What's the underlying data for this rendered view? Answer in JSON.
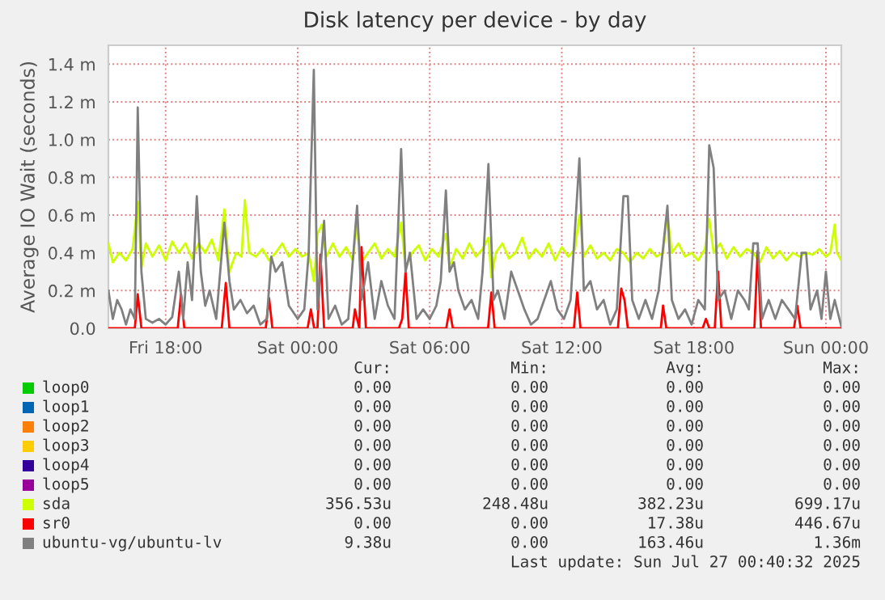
{
  "chart_data": {
    "type": "line",
    "title": "Disk latency per device - by day",
    "ylabel": "Average IO Wait (seconds)",
    "xlim": [
      "2025-07-25T15:24",
      "2025-07-27T00:42"
    ],
    "xticks": [
      {
        "value": "2025-07-25T18:00",
        "label": "Fri 18:00"
      },
      {
        "value": "2025-07-26T00:00",
        "label": "Sat 00:00"
      },
      {
        "value": "2025-07-26T06:00",
        "label": "Sat 06:00"
      },
      {
        "value": "2025-07-26T12:00",
        "label": "Sat 12:00"
      },
      {
        "value": "2025-07-26T18:00",
        "label": "Sat 18:00"
      },
      {
        "value": "2025-07-27T00:00",
        "label": "Sun 00:00"
      }
    ],
    "ylim": [
      0,
      1.5
    ],
    "yticks": [
      {
        "value": 0,
        "label": "0.0"
      },
      {
        "value": 0.2,
        "label": "0.2 m"
      },
      {
        "value": 0.4,
        "label": "0.4 m"
      },
      {
        "value": 0.6,
        "label": "0.6 m"
      },
      {
        "value": 0.8,
        "label": "0.8 m"
      },
      {
        "value": 1.0,
        "label": "1.0 m"
      },
      {
        "value": 1.2,
        "label": "1.2 m"
      },
      {
        "value": 1.4,
        "label": "1.4 m"
      }
    ],
    "grid": true,
    "legend": "bottom",
    "series": [
      {
        "name": "loop0",
        "color": "#00cc00"
      },
      {
        "name": "loop1",
        "color": "#0066b3"
      },
      {
        "name": "loop2",
        "color": "#ff8000"
      },
      {
        "name": "loop3",
        "color": "#ffcc00"
      },
      {
        "name": "loop4",
        "color": "#330099"
      },
      {
        "name": "loop5",
        "color": "#990099"
      },
      {
        "name": "sda",
        "color": "#ccff00",
        "x": [
          "2025-07-25T15:24",
          "2025-07-25T15:36",
          "2025-07-25T15:54",
          "2025-07-25T16:12",
          "2025-07-25T16:30",
          "2025-07-25T16:44",
          "2025-07-25T16:54",
          "2025-07-25T17:06",
          "2025-07-25T17:24",
          "2025-07-25T17:42",
          "2025-07-25T18:00",
          "2025-07-25T18:18",
          "2025-07-25T18:36",
          "2025-07-25T18:54",
          "2025-07-25T19:12",
          "2025-07-25T19:30",
          "2025-07-25T19:48",
          "2025-07-25T20:06",
          "2025-07-25T20:24",
          "2025-07-25T20:40",
          "2025-07-25T20:54",
          "2025-07-25T21:12",
          "2025-07-25T21:27",
          "2025-07-25T21:36",
          "2025-07-25T21:48",
          "2025-07-25T22:06",
          "2025-07-25T22:24",
          "2025-07-25T22:42",
          "2025-07-25T23:00",
          "2025-07-25T23:18",
          "2025-07-25T23:36",
          "2025-07-25T23:54",
          "2025-07-26T00:12",
          "2025-07-26T00:30",
          "2025-07-26T00:44",
          "2025-07-26T00:54",
          "2025-07-26T01:06",
          "2025-07-26T01:18",
          "2025-07-26T01:36",
          "2025-07-26T01:54",
          "2025-07-26T02:12",
          "2025-07-26T02:30",
          "2025-07-26T02:42",
          "2025-07-26T02:54",
          "2025-07-26T03:12",
          "2025-07-26T03:30",
          "2025-07-26T03:48",
          "2025-07-26T04:06",
          "2025-07-26T04:24",
          "2025-07-26T04:42",
          "2025-07-26T04:54",
          "2025-07-26T05:12",
          "2025-07-26T05:30",
          "2025-07-26T05:48",
          "2025-07-26T06:06",
          "2025-07-26T06:24",
          "2025-07-26T06:44",
          "2025-07-26T06:54",
          "2025-07-26T07:12",
          "2025-07-26T07:30",
          "2025-07-26T07:48",
          "2025-07-26T08:06",
          "2025-07-26T08:24",
          "2025-07-26T08:40",
          "2025-07-26T08:48",
          "2025-07-26T09:00",
          "2025-07-26T09:18",
          "2025-07-26T09:36",
          "2025-07-26T09:54",
          "2025-07-26T10:12",
          "2025-07-26T10:30",
          "2025-07-26T10:48",
          "2025-07-26T11:06",
          "2025-07-26T11:24",
          "2025-07-26T11:42",
          "2025-07-26T12:00",
          "2025-07-26T12:18",
          "2025-07-26T12:36",
          "2025-07-26T12:48",
          "2025-07-26T13:00",
          "2025-07-26T13:18",
          "2025-07-26T13:36",
          "2025-07-26T13:54",
          "2025-07-26T14:12",
          "2025-07-26T14:30",
          "2025-07-26T14:48",
          "2025-07-26T15:06",
          "2025-07-26T15:24",
          "2025-07-26T15:42",
          "2025-07-26T16:00",
          "2025-07-26T16:18",
          "2025-07-26T16:36",
          "2025-07-26T16:48",
          "2025-07-26T17:00",
          "2025-07-26T17:18",
          "2025-07-26T17:36",
          "2025-07-26T17:54",
          "2025-07-26T18:12",
          "2025-07-26T18:30",
          "2025-07-26T18:42",
          "2025-07-26T18:54",
          "2025-07-26T19:12",
          "2025-07-26T19:30",
          "2025-07-26T19:48",
          "2025-07-26T20:06",
          "2025-07-26T20:24",
          "2025-07-26T20:42",
          "2025-07-26T21:00",
          "2025-07-26T21:18",
          "2025-07-26T21:36",
          "2025-07-26T21:54",
          "2025-07-26T22:12",
          "2025-07-26T22:30",
          "2025-07-26T22:48",
          "2025-07-26T23:06",
          "2025-07-26T23:24",
          "2025-07-26T23:42",
          "2025-07-27T00:00",
          "2025-07-27T00:12",
          "2025-07-27T00:24",
          "2025-07-27T00:30",
          "2025-07-27T00:42"
        ],
        "values": [
          0.45,
          0.35,
          0.4,
          0.36,
          0.42,
          0.67,
          0.32,
          0.45,
          0.38,
          0.44,
          0.36,
          0.46,
          0.4,
          0.45,
          0.37,
          0.45,
          0.4,
          0.47,
          0.36,
          0.63,
          0.3,
          0.4,
          0.38,
          0.68,
          0.4,
          0.38,
          0.42,
          0.36,
          0.4,
          0.45,
          0.38,
          0.42,
          0.38,
          0.4,
          0.25,
          0.5,
          0.55,
          0.38,
          0.45,
          0.38,
          0.43,
          0.36,
          0.55,
          0.35,
          0.4,
          0.45,
          0.37,
          0.42,
          0.38,
          0.56,
          0.32,
          0.4,
          0.44,
          0.36,
          0.42,
          0.38,
          0.5,
          0.32,
          0.42,
          0.37,
          0.45,
          0.38,
          0.42,
          0.48,
          0.27,
          0.4,
          0.45,
          0.37,
          0.4,
          0.48,
          0.37,
          0.42,
          0.38,
          0.45,
          0.36,
          0.43,
          0.38,
          0.42,
          0.6,
          0.38,
          0.44,
          0.37,
          0.4,
          0.36,
          0.42,
          0.4,
          0.35,
          0.4,
          0.37,
          0.42,
          0.38,
          0.4,
          0.6,
          0.4,
          0.45,
          0.38,
          0.4,
          0.36,
          0.42,
          0.58,
          0.4,
          0.45,
          0.37,
          0.43,
          0.38,
          0.42,
          0.4,
          0.35,
          0.43,
          0.37,
          0.41,
          0.36,
          0.4,
          0.38,
          0.4,
          0.39,
          0.42,
          0.38,
          0.4,
          0.55,
          0.4,
          0.36
        ]
      },
      {
        "name": "sr0",
        "color": "#ff0000",
        "x": [
          "2025-07-25T15:24",
          "2025-07-25T16:36",
          "2025-07-25T16:44",
          "2025-07-25T16:54",
          "2025-07-25T18:33",
          "2025-07-25T18:42",
          "2025-07-25T18:51",
          "2025-07-25T20:33",
          "2025-07-25T20:44",
          "2025-07-25T20:54",
          "2025-07-25T22:33",
          "2025-07-25T22:42",
          "2025-07-25T22:51",
          "2025-07-26T00:27",
          "2025-07-26T00:36",
          "2025-07-26T00:45",
          "2025-07-26T00:54",
          "2025-07-26T01:02",
          "2025-07-26T01:12",
          "2025-07-26T02:30",
          "2025-07-26T02:36",
          "2025-07-26T02:48",
          "2025-07-26T02:54",
          "2025-07-26T03:06",
          "2025-07-26T04:36",
          "2025-07-26T04:45",
          "2025-07-26T04:54",
          "2025-07-26T05:03",
          "2025-07-26T06:45",
          "2025-07-26T06:54",
          "2025-07-26T07:03",
          "2025-07-26T08:39",
          "2025-07-26T08:48",
          "2025-07-26T08:57",
          "2025-07-26T12:33",
          "2025-07-26T12:42",
          "2025-07-26T12:51",
          "2025-07-26T14:33",
          "2025-07-26T14:42",
          "2025-07-26T14:51",
          "2025-07-26T15:00",
          "2025-07-26T16:30",
          "2025-07-26T16:36",
          "2025-07-26T16:45",
          "2025-07-26T18:24",
          "2025-07-26T18:33",
          "2025-07-26T18:42",
          "2025-07-26T18:57",
          "2025-07-26T19:06",
          "2025-07-26T19:15",
          "2025-07-26T20:45",
          "2025-07-26T20:54",
          "2025-07-26T21:03",
          "2025-07-26T22:33",
          "2025-07-26T22:42",
          "2025-07-26T22:51",
          "2025-07-27T00:42"
        ],
        "values": [
          0,
          0,
          0.18,
          0,
          0,
          0.18,
          0,
          0,
          0.24,
          0,
          0,
          0.16,
          0,
          0,
          0.1,
          0,
          0,
          0.39,
          0,
          0,
          0.1,
          0,
          0.43,
          0,
          0,
          0.05,
          0.3,
          0,
          0,
          0.1,
          0,
          0,
          0.19,
          0,
          0,
          0.19,
          0,
          0,
          0.21,
          0.15,
          0,
          0,
          0.12,
          0,
          0,
          0.05,
          0,
          0,
          0.3,
          0,
          0,
          0.41,
          0,
          0,
          0.12,
          0,
          0
        ]
      },
      {
        "name": "ubuntu-vg/ubuntu-lv",
        "color": "#808080",
        "x": [
          "2025-07-25T15:24",
          "2025-07-25T15:36",
          "2025-07-25T15:48",
          "2025-07-25T16:00",
          "2025-07-25T16:12",
          "2025-07-25T16:24",
          "2025-07-25T16:36",
          "2025-07-25T16:44",
          "2025-07-25T16:54",
          "2025-07-25T17:06",
          "2025-07-25T17:24",
          "2025-07-25T17:42",
          "2025-07-25T18:00",
          "2025-07-25T18:18",
          "2025-07-25T18:36",
          "2025-07-25T18:48",
          "2025-07-25T19:00",
          "2025-07-25T19:12",
          "2025-07-25T19:25",
          "2025-07-25T19:36",
          "2025-07-25T19:48",
          "2025-07-25T20:00",
          "2025-07-25T20:18",
          "2025-07-25T20:40",
          "2025-07-25T20:54",
          "2025-07-25T21:06",
          "2025-07-25T21:24",
          "2025-07-25T21:42",
          "2025-07-25T22:00",
          "2025-07-25T22:18",
          "2025-07-25T22:36",
          "2025-07-25T22:48",
          "2025-07-25T23:00",
          "2025-07-25T23:18",
          "2025-07-25T23:36",
          "2025-07-26T00:00",
          "2025-07-26T00:18",
          "2025-07-26T00:30",
          "2025-07-26T00:44",
          "2025-07-26T00:54",
          "2025-07-26T01:12",
          "2025-07-26T01:24",
          "2025-07-26T01:42",
          "2025-07-26T02:00",
          "2025-07-26T02:18",
          "2025-07-26T02:42",
          "2025-07-26T02:54",
          "2025-07-26T03:12",
          "2025-07-26T03:30",
          "2025-07-26T03:48",
          "2025-07-26T04:06",
          "2025-07-26T04:24",
          "2025-07-26T04:42",
          "2025-07-26T04:54",
          "2025-07-26T05:06",
          "2025-07-26T05:24",
          "2025-07-26T05:42",
          "2025-07-26T06:00",
          "2025-07-26T06:18",
          "2025-07-26T06:30",
          "2025-07-26T06:44",
          "2025-07-26T06:54",
          "2025-07-26T07:06",
          "2025-07-26T07:18",
          "2025-07-26T07:36",
          "2025-07-26T07:54",
          "2025-07-26T08:12",
          "2025-07-26T08:24",
          "2025-07-26T08:40",
          "2025-07-26T08:54",
          "2025-07-26T09:06",
          "2025-07-26T09:24",
          "2025-07-26T09:42",
          "2025-07-26T10:00",
          "2025-07-26T10:18",
          "2025-07-26T10:36",
          "2025-07-26T10:54",
          "2025-07-26T11:12",
          "2025-07-26T11:30",
          "2025-07-26T11:48",
          "2025-07-26T12:06",
          "2025-07-26T12:24",
          "2025-07-26T12:48",
          "2025-07-26T13:00",
          "2025-07-26T13:18",
          "2025-07-26T13:36",
          "2025-07-26T13:54",
          "2025-07-26T14:12",
          "2025-07-26T14:30",
          "2025-07-26T14:48",
          "2025-07-26T15:00",
          "2025-07-26T15:12",
          "2025-07-26T15:30",
          "2025-07-26T15:48",
          "2025-07-26T16:06",
          "2025-07-26T16:24",
          "2025-07-26T16:48",
          "2025-07-26T17:00",
          "2025-07-26T17:18",
          "2025-07-26T17:36",
          "2025-07-26T17:54",
          "2025-07-26T18:12",
          "2025-07-26T18:30",
          "2025-07-26T18:42",
          "2025-07-26T18:54",
          "2025-07-26T19:06",
          "2025-07-26T19:24",
          "2025-07-26T19:42",
          "2025-07-26T20:00",
          "2025-07-26T20:18",
          "2025-07-26T20:30",
          "2025-07-26T20:42",
          "2025-07-26T20:54",
          "2025-07-26T21:06",
          "2025-07-26T21:24",
          "2025-07-26T21:42",
          "2025-07-26T22:00",
          "2025-07-26T22:18",
          "2025-07-26T22:36",
          "2025-07-26T22:54",
          "2025-07-26T23:06",
          "2025-07-26T23:18",
          "2025-07-26T23:36",
          "2025-07-26T23:48",
          "2025-07-27T00:00",
          "2025-07-27T00:12",
          "2025-07-27T00:24",
          "2025-07-27T00:42"
        ],
        "values": [
          0.2,
          0.05,
          0.15,
          0.1,
          0.02,
          0.1,
          0.05,
          1.17,
          0.3,
          0.05,
          0.03,
          0.05,
          0.02,
          0.06,
          0.3,
          0.05,
          0.35,
          0.15,
          0.7,
          0.3,
          0.12,
          0.2,
          0.05,
          0.56,
          0.25,
          0.1,
          0.15,
          0.08,
          0.12,
          0.02,
          0.05,
          0.38,
          0.3,
          0.35,
          0.12,
          0.05,
          0.1,
          0.4,
          1.37,
          0.1,
          0.57,
          0.05,
          0.12,
          0.02,
          0.05,
          0.65,
          0.15,
          0.35,
          0.05,
          0.25,
          0.12,
          0.05,
          0.95,
          0.3,
          0.4,
          0.05,
          0.1,
          0.05,
          0.12,
          0.25,
          0.73,
          0.3,
          0.35,
          0.2,
          0.1,
          0.15,
          0.05,
          0.3,
          0.87,
          0.15,
          0.2,
          0.05,
          0.3,
          0.2,
          0.1,
          0.02,
          0.05,
          0.15,
          0.25,
          0.1,
          0.05,
          0.15,
          0.9,
          0.2,
          0.25,
          0.1,
          0.15,
          0.02,
          0.1,
          0.7,
          0.7,
          0.15,
          0.05,
          0.15,
          0.05,
          0.2,
          0.65,
          0.15,
          0.05,
          0.1,
          0.02,
          0.15,
          0.1,
          0.97,
          0.85,
          0.15,
          0.2,
          0.05,
          0.2,
          0.15,
          0.1,
          0.45,
          0.45,
          0.05,
          0.15,
          0.05,
          0.15,
          0.1,
          0.05,
          0.4,
          0.4,
          0.1,
          0.2,
          0.05,
          0.3,
          0.05,
          0.15,
          0.01
        ]
      }
    ],
    "annotations": [
      "Cur:",
      "Min:",
      "Avg:",
      "Max:",
      "0.00",
      "0.00",
      "0.00",
      "0.00",
      "0.00",
      "0.00",
      "0.00",
      "0.00",
      "0.00",
      "0.00",
      "0.00",
      "0.00",
      "0.00",
      "0.00",
      "0.00",
      "0.00",
      "0.00",
      "0.00",
      "0.00",
      "0.00",
      "0.00",
      "0.00",
      "0.00",
      "0.00",
      "356.53u",
      "248.48u",
      "382.23u",
      "699.17u",
      "0.00",
      "0.00",
      "17.38u",
      "446.67u",
      "9.38u",
      "0.00",
      "163.46u",
      "1.36m",
      "Last update: Sun Jul 27 00:40:32 2025"
    ]
  }
}
